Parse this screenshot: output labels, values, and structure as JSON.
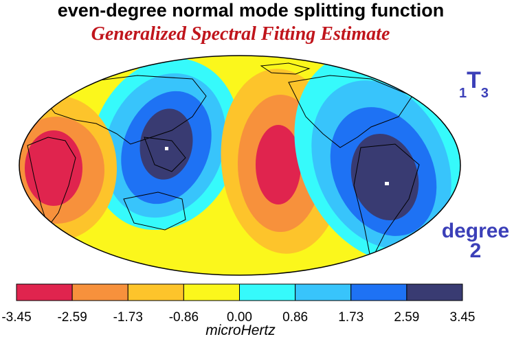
{
  "title": "even-degree normal mode splitting function",
  "subtitle": "Generalized Spectral Fitting Estimate",
  "mode_label": {
    "prefix": "1",
    "core": "T",
    "suffix": "3"
  },
  "degree_label": {
    "word": "degree",
    "value": "2"
  },
  "colorbar": {
    "ticks": [
      "-3.45",
      "-2.59",
      "-1.73",
      "-0.86",
      "0.00",
      "0.86",
      "1.73",
      "2.59",
      "3.45"
    ],
    "colors": [
      "#e0244e",
      "#f7913c",
      "#fdc42b",
      "#fbf71c",
      "#36fafb",
      "#38c4fb",
      "#1e72f4",
      "#393b72"
    ],
    "units": "microHertz"
  },
  "colors": {
    "ocean_background": "#fbf71c",
    "coastline": "#000000",
    "title_red": "#c0151c",
    "label_blue": "#3b3fb8"
  }
}
